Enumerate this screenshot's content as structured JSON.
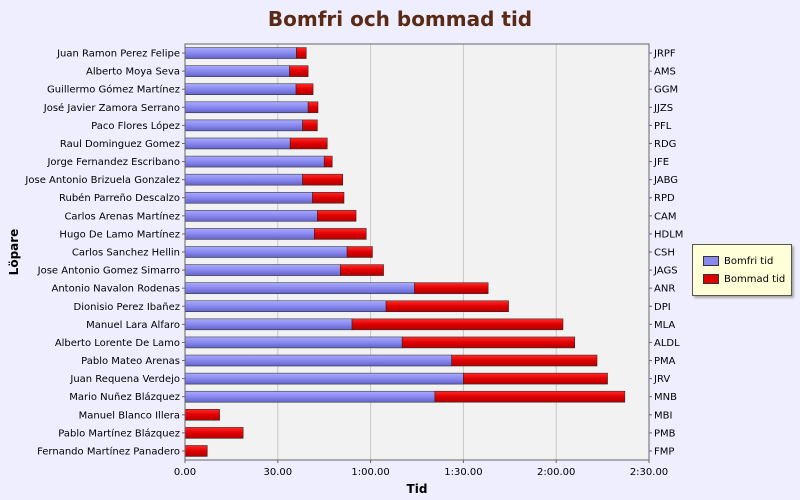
{
  "chart_data": {
    "type": "bar",
    "orientation": "horizontal",
    "stacked": true,
    "title": "Bomfri och bommad tid",
    "xlabel": "Tid",
    "ylabel": "Löpare",
    "xlim": [
      0,
      150
    ],
    "x_ticks": [
      "0.00",
      "30.00",
      "1:00.00",
      "1:30.00",
      "2:00.00",
      "2:30.00"
    ],
    "grid": true,
    "legend_position": "right",
    "categories": [
      "Juan Ramon Perez Felipe",
      "Alberto Moya Seva",
      "Guillermo Gómez Martínez",
      "José Javier Zamora Serrano",
      "Paco Flores López",
      "Raul Dominguez Gomez",
      "Jorge Fernandez Escribano",
      "Jose Antonio Brizuela Gonzalez",
      "Rubén Parreño Descalzo",
      "Carlos Arenas Martínez",
      "Hugo De Lamo Martínez",
      "Carlos Sanchez Hellin",
      "Jose Antonio Gomez Simarro",
      "Antonio Navalon Rodenas",
      "Dionisio Perez Ibañez",
      "Manuel Lara Alfaro",
      "Alberto Lorente De Lamo",
      "Pablo Mateo Arenas",
      "Juan Requena Verdejo",
      "Mario Nuñez Blázquez",
      "Manuel Blanco Illera",
      "Pablo Martínez Blázquez",
      "Fernando Martínez Panadero"
    ],
    "short_codes": [
      "JRPF",
      "AMS",
      "GGM",
      "JJZS",
      "PFL",
      "RDG",
      "JFE",
      "JABG",
      "RPD",
      "CAM",
      "HDLM",
      "CSH",
      "JAGS",
      "ANR",
      "DPI",
      "MLA",
      "ALDL",
      "PMA",
      "JRV",
      "MNB",
      "MBI",
      "PMB",
      "FMP"
    ],
    "series": [
      {
        "name": "Bomfri tid",
        "color": "#8888ee",
        "values": [
          36.0,
          33.8,
          35.9,
          39.8,
          38.0,
          34.0,
          45.0,
          38.0,
          41.2,
          42.8,
          41.8,
          52.4,
          50.2,
          74.2,
          65.0,
          54.0,
          70.2,
          86.2,
          90.0,
          80.8,
          0,
          0,
          0
        ]
      },
      {
        "name": "Bommad tid",
        "color": "#e00000",
        "values": [
          3.2,
          6.0,
          5.5,
          3.2,
          4.8,
          12.0,
          2.6,
          13.0,
          10.2,
          12.5,
          16.8,
          8.2,
          14.0,
          23.8,
          39.6,
          68.2,
          55.8,
          47.0,
          46.6,
          61.4,
          11.2,
          18.8,
          7.2
        ]
      }
    ]
  }
}
